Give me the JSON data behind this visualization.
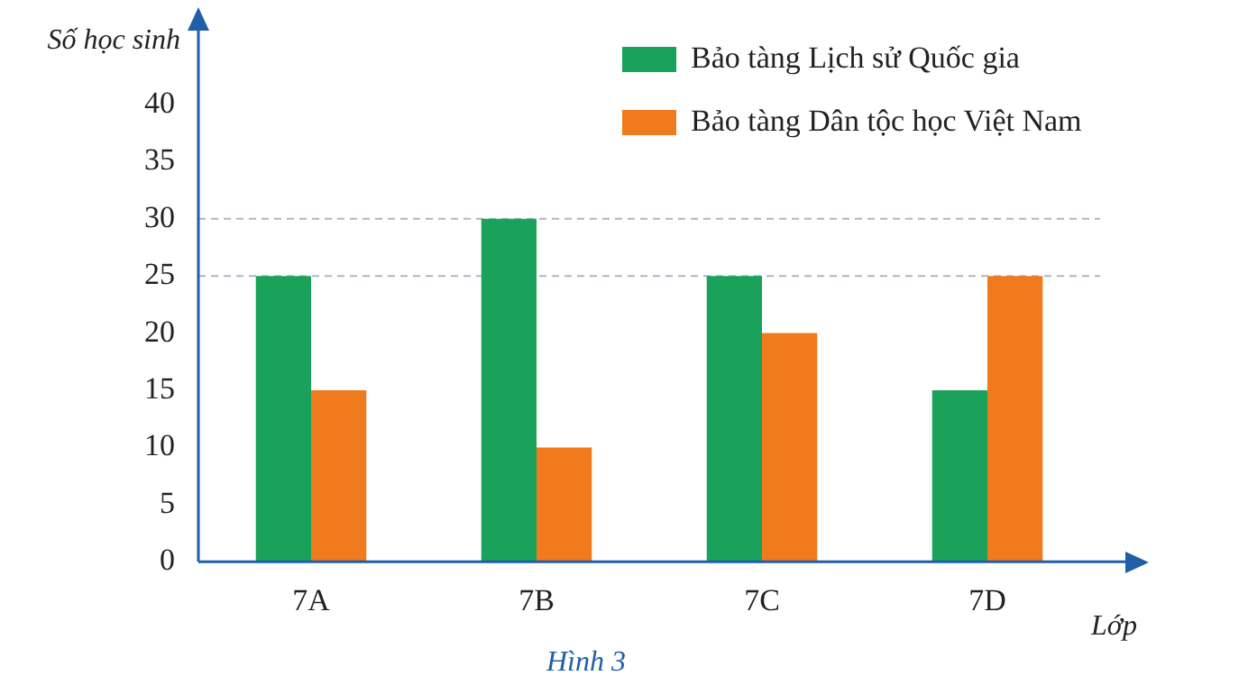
{
  "chart_data": {
    "type": "bar",
    "xlabel": "Lớp",
    "ylabel": "Số học sinh",
    "categories": [
      "7A",
      "7B",
      "7C",
      "7D"
    ],
    "series": [
      {
        "name": "Bảo tàng Lịch sử Quốc gia",
        "color": "#1ba25a",
        "values": [
          25,
          30,
          25,
          15
        ]
      },
      {
        "name": "Bảo tàng Dân tộc học Việt Nam",
        "color": "#f07a1e",
        "values": [
          15,
          10,
          20,
          25
        ]
      }
    ],
    "ylim": [
      0,
      40
    ],
    "yticks": [
      0,
      5,
      10,
      15,
      20,
      25,
      30,
      35,
      40
    ],
    "grid": false,
    "legend": "top right",
    "ref_lines": [
      {
        "axis": "y",
        "value": 30,
        "color": "#a9b8cc",
        "line_style": "dashed"
      },
      {
        "axis": "y",
        "value": 25,
        "color": "#a9b8cc",
        "line_style": "dashed"
      }
    ],
    "annotations": [
      "Hình 3"
    ]
  }
}
